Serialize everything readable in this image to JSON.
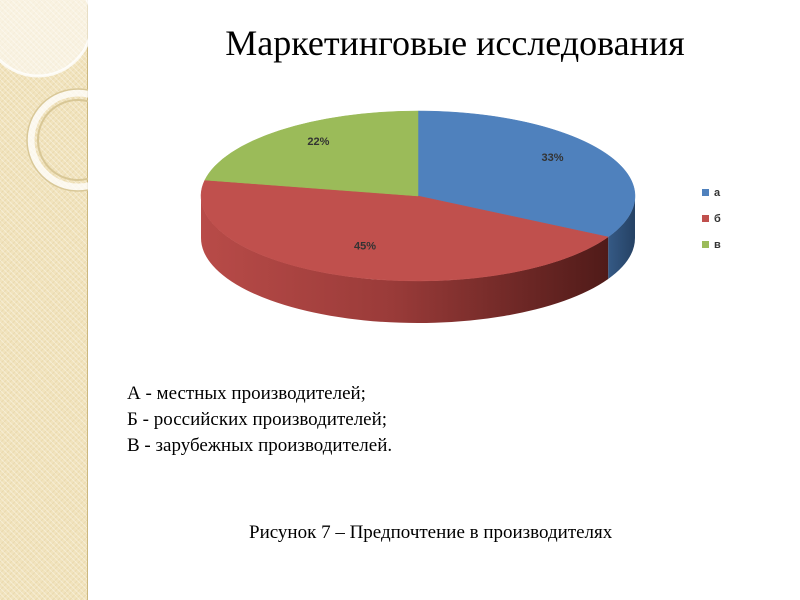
{
  "slide": {
    "title": "Маркетинговые исследования",
    "notes": [
      "А - местных производителей;",
      "Б - российских производителей;",
      "В - зарубежных производителей."
    ],
    "caption": "Рисунок 7 – Предпочтение в производителях"
  },
  "colors": {
    "strip": "#f1e3bd",
    "strip_border": "#cbb77f"
  },
  "chart_data": {
    "type": "pie",
    "three_d": true,
    "categories": [
      "а",
      "б",
      "в"
    ],
    "values": [
      33,
      45,
      22
    ],
    "data_labels": [
      "33%",
      "45%",
      "22%"
    ],
    "colors": [
      "#4f81bd",
      "#c0504d",
      "#9bbb59"
    ],
    "side_colors": [
      "#2c4d75",
      "#5a1d1c",
      "#5f7a32"
    ],
    "legend_position": "right"
  }
}
